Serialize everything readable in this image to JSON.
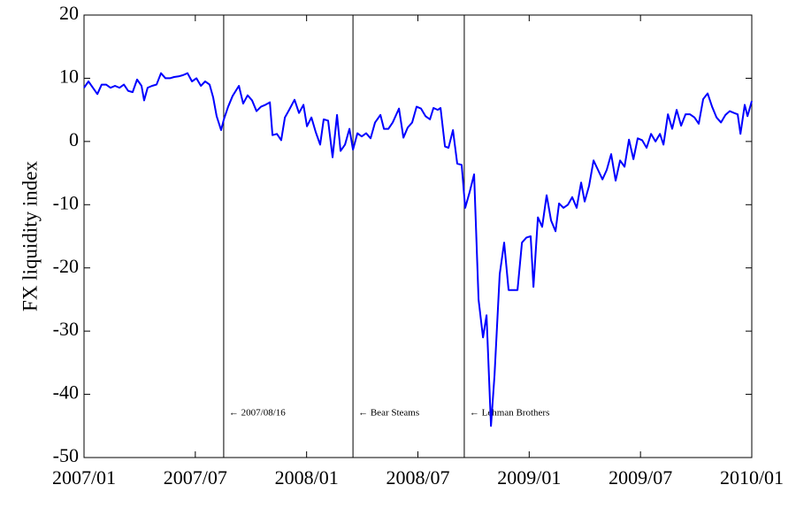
{
  "chart_data": {
    "type": "line",
    "y_label": "FX liquidity index",
    "xlim": [
      0,
      36
    ],
    "xticks": [
      {
        "value": 0,
        "label": "2007/01"
      },
      {
        "value": 6,
        "label": "2007/07"
      },
      {
        "value": 12,
        "label": "2008/01"
      },
      {
        "value": 18,
        "label": "2008/07"
      },
      {
        "value": 24,
        "label": "2009/01"
      },
      {
        "value": 30,
        "label": "2009/07"
      },
      {
        "value": 36,
        "label": "2010/01"
      }
    ],
    "ylim": [
      -50,
      20
    ],
    "yticks": [
      -50,
      -40,
      -30,
      -20,
      -10,
      0,
      10,
      20
    ],
    "grid": false,
    "x": [
      0,
      0.24,
      0.48,
      0.72,
      0.95,
      1.19,
      1.43,
      1.67,
      1.91,
      2.15,
      2.38,
      2.62,
      2.86,
      3.1,
      3.24,
      3.43,
      3.67,
      3.91,
      4.15,
      4.39,
      4.63,
      4.86,
      5.1,
      5.34,
      5.58,
      5.82,
      6.06,
      6.3,
      6.53,
      6.77,
      6.96,
      7.15,
      7.39,
      7.54,
      7.77,
      8.01,
      8.35,
      8.58,
      8.82,
      9.06,
      9.3,
      9.54,
      9.78,
      10.02,
      10.16,
      10.4,
      10.63,
      10.83,
      11.06,
      11.35,
      11.59,
      11.83,
      12.02,
      12.26,
      12.49,
      12.73,
      12.92,
      13.16,
      13.4,
      13.64,
      13.83,
      14.07,
      14.31,
      14.5,
      14.74,
      14.97,
      15.21,
      15.45,
      15.69,
      15.98,
      16.17,
      16.41,
      16.64,
      16.98,
      17.22,
      17.45,
      17.69,
      17.93,
      18.17,
      18.41,
      18.65,
      18.84,
      19.07,
      19.22,
      19.46,
      19.65,
      19.89,
      20.12,
      20.36,
      20.55,
      20.79,
      21.03,
      21.27,
      21.51,
      21.7,
      21.94,
      22.13,
      22.41,
      22.65,
      22.89,
      23.13,
      23.37,
      23.61,
      23.85,
      24.08,
      24.23,
      24.47,
      24.7,
      24.94,
      25.18,
      25.42,
      25.61,
      25.85,
      26.09,
      26.32,
      26.56,
      26.8,
      26.99,
      27.23,
      27.47,
      27.71,
      27.95,
      28.18,
      28.42,
      28.66,
      28.9,
      29.14,
      29.38,
      29.62,
      29.85,
      30.09,
      30.33,
      30.57,
      30.81,
      31.05,
      31.24,
      31.48,
      31.71,
      31.95,
      32.19,
      32.43,
      32.67,
      32.91,
      33.14,
      33.38,
      33.62,
      33.86,
      34.1,
      34.34,
      34.58,
      34.81,
      35.05,
      35.24,
      35.39,
      35.62,
      35.77,
      36
    ],
    "series": [
      {
        "color": "#0000ff",
        "values": [
          8.5,
          9.5,
          8.5,
          7.5,
          9,
          9,
          8.5,
          8.8,
          8.5,
          9,
          8,
          7.8,
          9.8,
          8.8,
          6.5,
          8.5,
          8.8,
          9,
          10.8,
          10,
          10,
          10.2,
          10.3,
          10.5,
          10.8,
          9.5,
          10,
          8.8,
          9.5,
          9,
          7,
          4,
          1.8,
          3.5,
          5.5,
          7.2,
          8.8,
          6,
          7.3,
          6.5,
          4.8,
          5.5,
          5.8,
          6.2,
          1,
          1.2,
          0.2,
          3.8,
          5,
          6.6,
          4.5,
          5.8,
          2.4,
          3.8,
          1.5,
          -0.5,
          3.5,
          3.3,
          -2.5,
          4.2,
          -1.5,
          -0.5,
          2,
          -1.3,
          1.3,
          0.8,
          1.3,
          0.5,
          3,
          4.2,
          2,
          2,
          3,
          5.2,
          0.6,
          2.2,
          3,
          5.5,
          5.2,
          4,
          3.5,
          5.3,
          5,
          5.3,
          -0.8,
          -1,
          1.8,
          -3.5,
          -3.7,
          -10.5,
          -8,
          -5.2,
          -25,
          -31,
          -27.5,
          -45,
          -37,
          -21,
          -16,
          -23.5,
          -23.5,
          -23.5,
          -16,
          -15.2,
          -15,
          -23,
          -12,
          -13.5,
          -8.5,
          -12.5,
          -14.2,
          -9.8,
          -10.5,
          -10,
          -8.8,
          -10.5,
          -6.5,
          -9.5,
          -7,
          -3,
          -4.5,
          -6,
          -4.5,
          -2,
          -6.2,
          -3,
          -4,
          0.3,
          -2.8,
          0.5,
          0.2,
          -1,
          1.2,
          0,
          1.2,
          -0.5,
          4.3,
          2,
          5,
          2.5,
          4.3,
          4.3,
          3.8,
          2.8,
          6.7,
          7.6,
          5.5,
          3.8,
          3,
          4.2,
          4.8,
          4.5,
          4.3,
          1.2,
          5.8,
          4,
          6.4
        ]
      }
    ],
    "annotations": [
      {
        "x": 7.53,
        "text": "← 2007/08/16"
      },
      {
        "x": 14.5,
        "text": "← Bear Steams"
      },
      {
        "x": 20.5,
        "text": "← Lehman Brothers"
      }
    ]
  }
}
